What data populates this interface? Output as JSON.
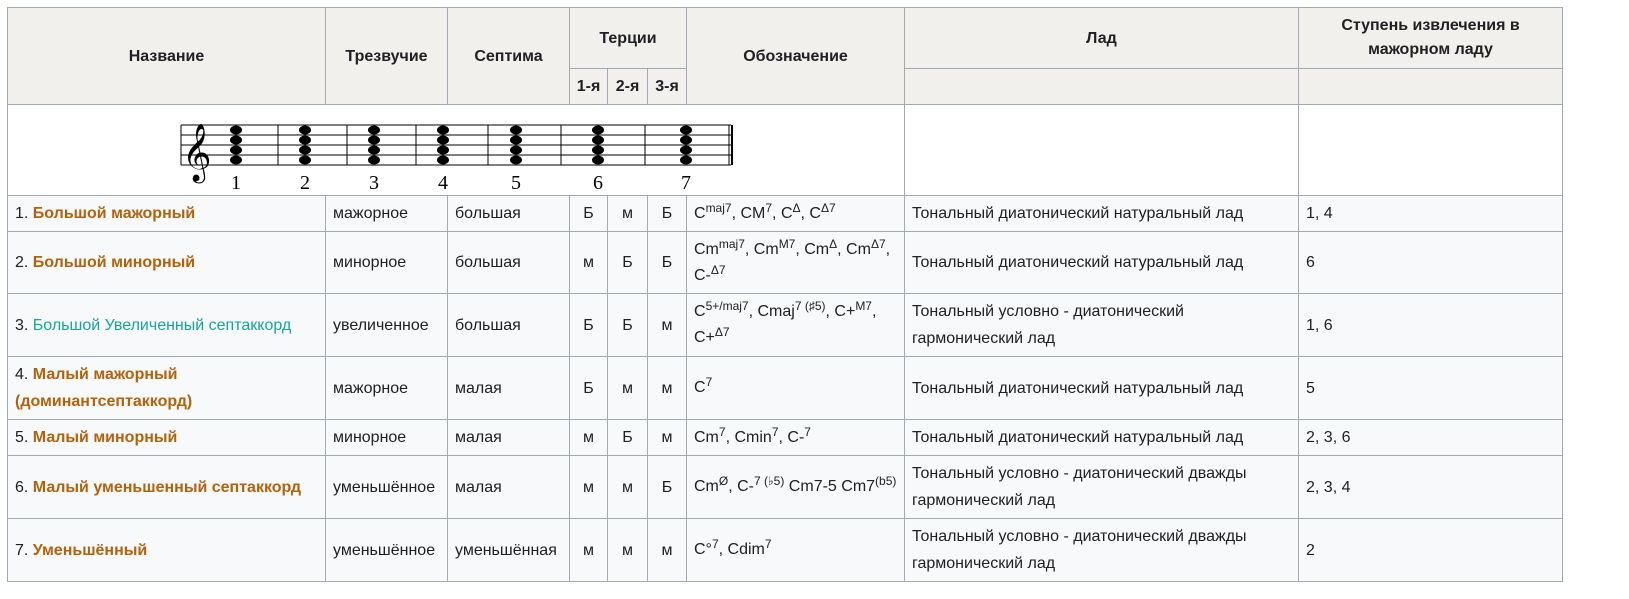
{
  "header": {
    "name": "Название",
    "triad": "Трезвучие",
    "seventh": "Септима",
    "thirds": "Терции",
    "thirds_sub": [
      "1-я",
      "2-я",
      "3-я"
    ],
    "notation": "Обозначение",
    "mode": "Лад",
    "degree": "Ступень извлечения в мажорном ладу"
  },
  "staff_labels": [
    "1",
    "2",
    "3",
    "4",
    "5",
    "6",
    "7"
  ],
  "rows": [
    {
      "num": "1.",
      "name": "Большой мажорный",
      "triad": "мажорное",
      "seventh": "большая",
      "thirds": [
        "Б",
        "м",
        "Б"
      ],
      "notation": [
        "C",
        "maj7",
        ", CM",
        "7",
        ", C",
        "Δ",
        ", C",
        "Δ7"
      ],
      "mode": "Тональный диатонический натуральный лад",
      "degree": "1, 4"
    },
    {
      "num": "2.",
      "name": "Большой минорный",
      "triad": "минорное",
      "seventh": "большая",
      "thirds": [
        "м",
        "Б",
        "Б"
      ],
      "notation": [
        "Cm",
        "maj7",
        ", Cm",
        "M7",
        ", Cm",
        "Δ",
        ", Cm",
        "Δ7",
        ", C-",
        "Δ7"
      ],
      "mode": "Тональный диатонический натуральный лад",
      "degree": "6"
    },
    {
      "num": "3.",
      "name": "Большой Увеличенный септаккорд",
      "triad": "увеличенное",
      "seventh": "большая",
      "thirds": [
        "Б",
        "Б",
        "м"
      ],
      "notation": [
        "C",
        "5+/maj7",
        ", Cmaj",
        "7 (♯5)",
        ", C+",
        "M7",
        ", C+",
        "Δ7"
      ],
      "mode": "Тональный условно - диатонический гармонический лад",
      "degree": "1, 6"
    },
    {
      "num": "4.",
      "name": "Малый мажорный (доминантсептаккорд)",
      "triad": "мажорное",
      "seventh": "малая",
      "thirds": [
        "Б",
        "м",
        "м"
      ],
      "notation": [
        "C",
        "7"
      ],
      "mode": "Тональный диатонический натуральный лад",
      "degree": "5"
    },
    {
      "num": "5.",
      "name": "Малый минорный",
      "triad": "минорное",
      "seventh": "малая",
      "thirds": [
        "м",
        "Б",
        "м"
      ],
      "notation": [
        "Cm",
        "7",
        ", Cmin",
        "7",
        ", C-",
        "7"
      ],
      "mode": "Тональный диатонический натуральный лад",
      "degree": "2, 3, 6"
    },
    {
      "num": "6.",
      "name": "Малый уменьшенный септаккорд",
      "triad": "уменьшённое",
      "seventh": "малая",
      "thirds": [
        "м",
        "м",
        "Б"
      ],
      "notation": [
        "Cm",
        "Ø",
        ", C-",
        "7 (♭5)",
        " Cm7-5 Cm7",
        "(b5)"
      ],
      "mode": "Тональный условно - диатонический дважды гармонический лад",
      "degree": "2, 3, 4"
    },
    {
      "num": "7.",
      "name": "Уменьшённый",
      "triad": "уменьшённое",
      "seventh": "уменьшённая",
      "thirds": [
        "м",
        "м",
        "м"
      ],
      "notation": [
        "C°",
        "7",
        ", Cdim",
        "7"
      ],
      "mode": "Тональный условно - диатонический дважды гармонический лад",
      "degree": "2"
    }
  ]
}
